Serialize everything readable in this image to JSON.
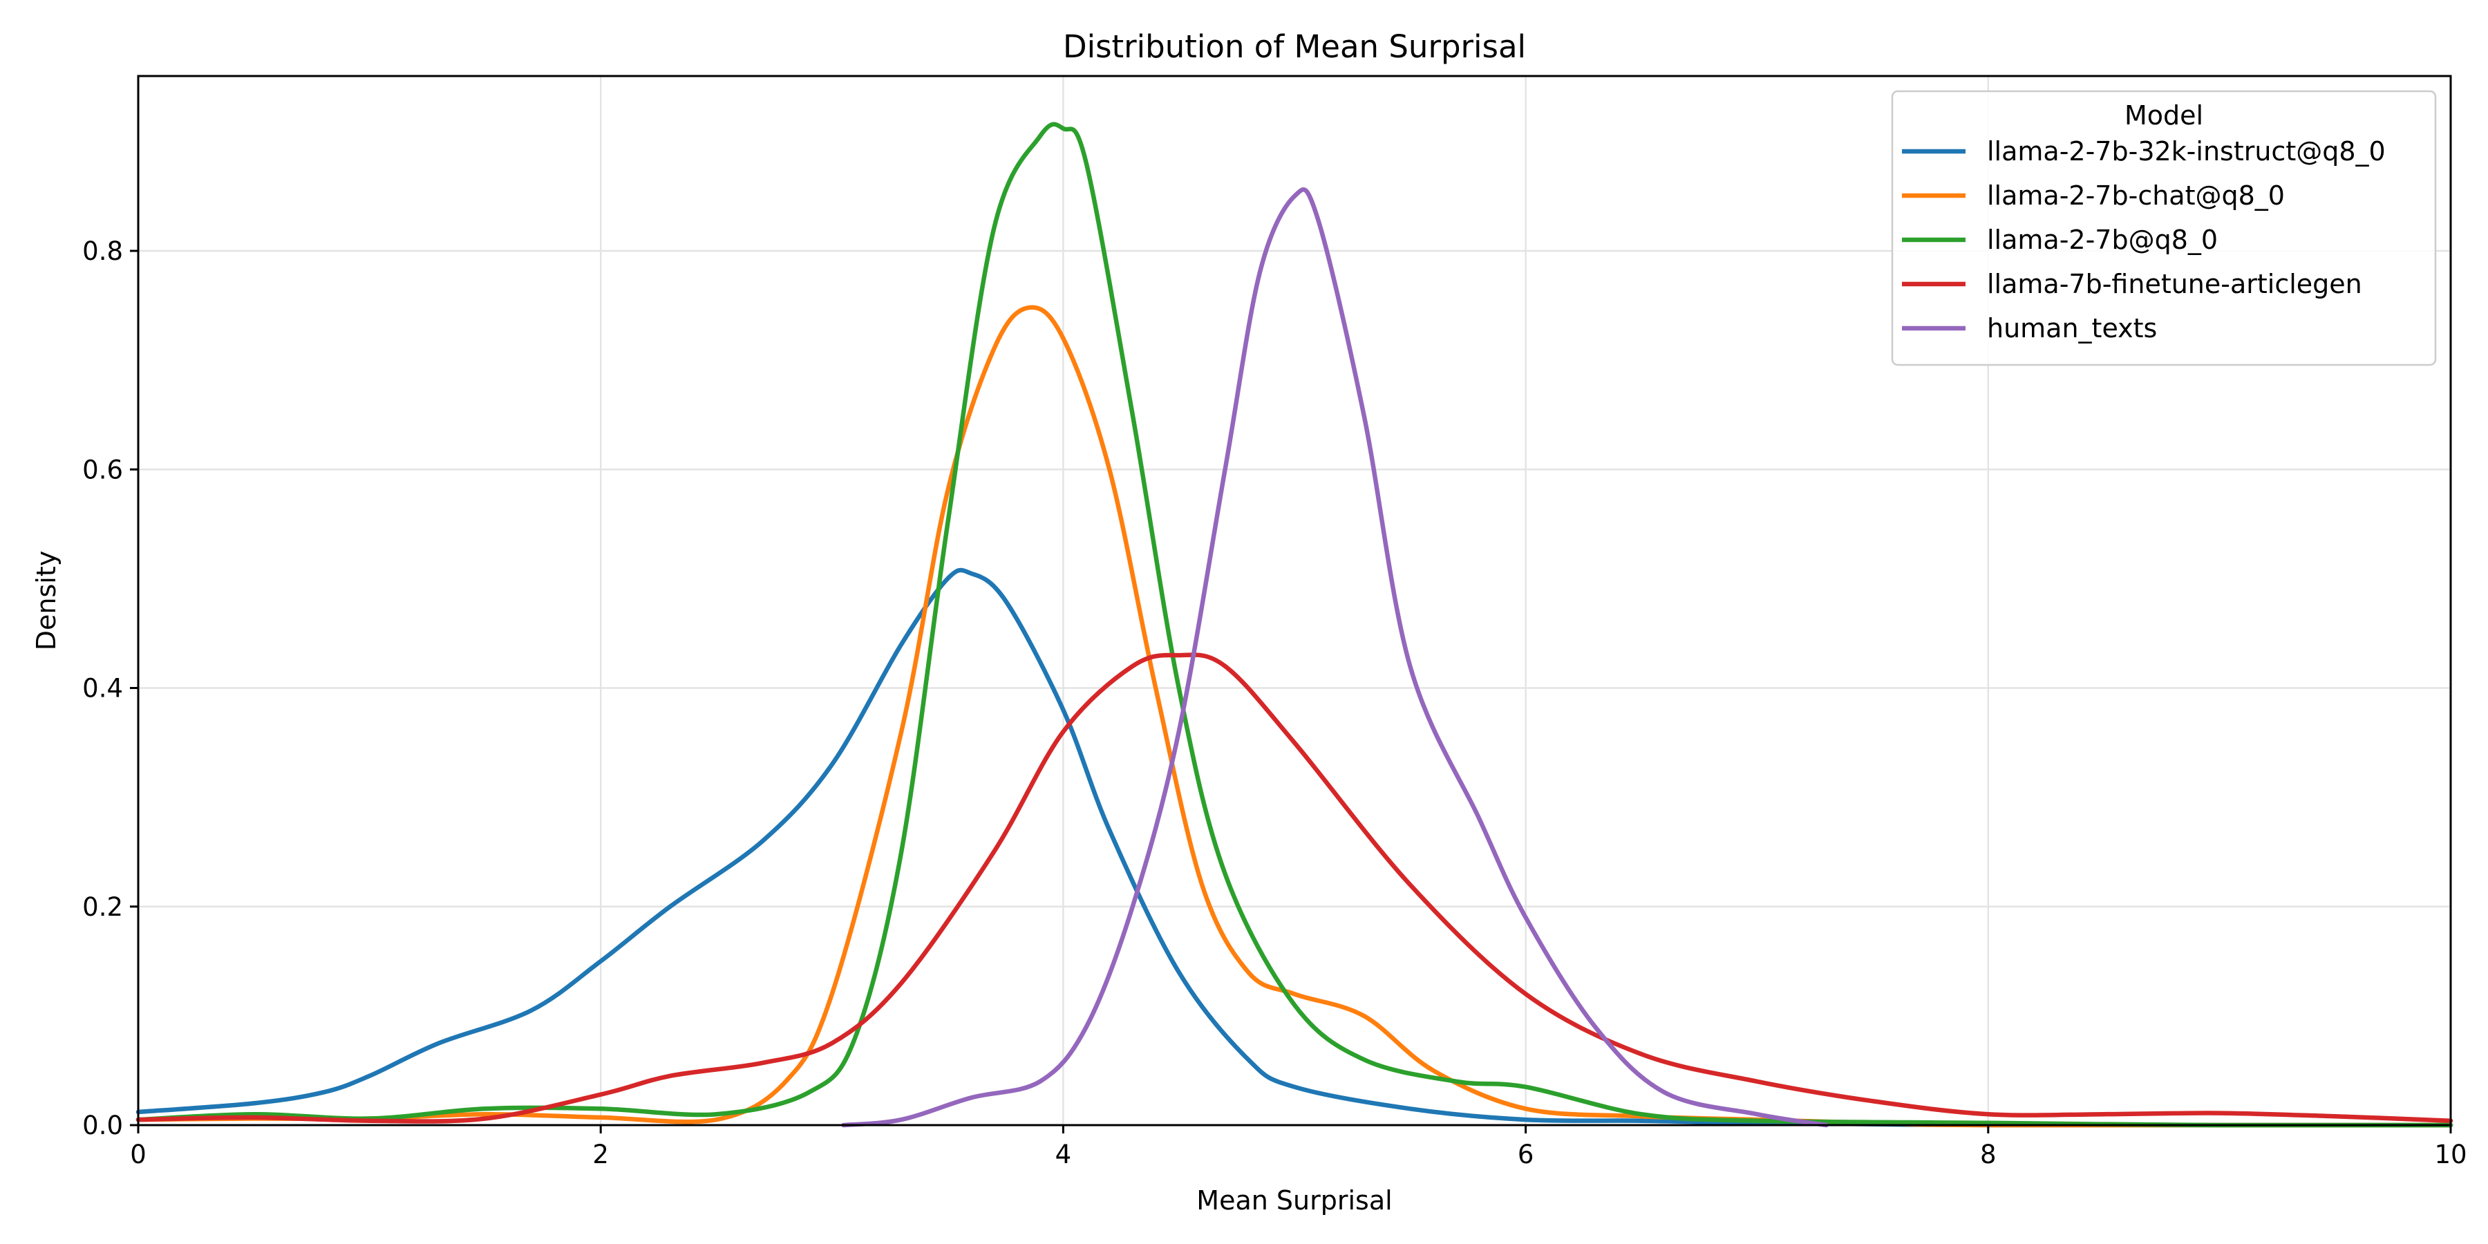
{
  "chart_data": {
    "type": "line",
    "title": "Distribution of Mean Surprisal",
    "xlabel": "Mean Surprisal",
    "ylabel": "Density",
    "xlim": [
      0,
      10
    ],
    "ylim": [
      0,
      0.96
    ],
    "xticks": [
      0,
      2,
      4,
      6,
      8,
      10
    ],
    "xtick_labels": [
      "0",
      "2",
      "4",
      "6",
      "8",
      "10"
    ],
    "yticks": [
      0.0,
      0.2,
      0.4,
      0.6,
      0.8
    ],
    "ytick_labels": [
      "0.0",
      "0.2",
      "0.4",
      "0.6",
      "0.8"
    ],
    "grid": true,
    "legend": {
      "title": "Model",
      "position": "top-right"
    },
    "series": [
      {
        "name": "llama-2-7b-32k-instruct@q8_0",
        "color": "#1f77b4",
        "points": [
          [
            0,
            0.012
          ],
          [
            0.5,
            0.02
          ],
          [
            0.8,
            0.03
          ],
          [
            1.0,
            0.045
          ],
          [
            1.3,
            0.075
          ],
          [
            1.7,
            0.105
          ],
          [
            2.0,
            0.15
          ],
          [
            2.3,
            0.2
          ],
          [
            2.7,
            0.26
          ],
          [
            3.0,
            0.33
          ],
          [
            3.3,
            0.44
          ],
          [
            3.5,
            0.5
          ],
          [
            3.6,
            0.505
          ],
          [
            3.75,
            0.48
          ],
          [
            4.0,
            0.38
          ],
          [
            4.2,
            0.27
          ],
          [
            4.5,
            0.14
          ],
          [
            4.8,
            0.06
          ],
          [
            5.0,
            0.035
          ],
          [
            5.5,
            0.015
          ],
          [
            6.0,
            0.005
          ],
          [
            6.5,
            0.004
          ],
          [
            7.0,
            0.002
          ],
          [
            8.0,
            0.0
          ],
          [
            9.0,
            0.0
          ],
          [
            10.0,
            0.0
          ]
        ]
      },
      {
        "name": "llama-2-7b-chat@q8_0",
        "color": "#ff7f0e",
        "points": [
          [
            0,
            0.005
          ],
          [
            0.5,
            0.006
          ],
          [
            1.0,
            0.006
          ],
          [
            1.5,
            0.01
          ],
          [
            2.0,
            0.007
          ],
          [
            2.5,
            0.005
          ],
          [
            2.8,
            0.04
          ],
          [
            3.0,
            0.12
          ],
          [
            3.3,
            0.36
          ],
          [
            3.5,
            0.58
          ],
          [
            3.7,
            0.71
          ],
          [
            3.85,
            0.748
          ],
          [
            4.0,
            0.72
          ],
          [
            4.2,
            0.6
          ],
          [
            4.4,
            0.4
          ],
          [
            4.6,
            0.22
          ],
          [
            4.8,
            0.14
          ],
          [
            5.0,
            0.12
          ],
          [
            5.3,
            0.1
          ],
          [
            5.6,
            0.05
          ],
          [
            6.0,
            0.015
          ],
          [
            6.5,
            0.008
          ],
          [
            7.0,
            0.005
          ],
          [
            7.5,
            0.002
          ],
          [
            8.0,
            0.0
          ],
          [
            10.0,
            0.0
          ]
        ]
      },
      {
        "name": "llama-2-7b@q8_0",
        "color": "#2ca02c",
        "points": [
          [
            0,
            0.005
          ],
          [
            0.5,
            0.01
          ],
          [
            1.0,
            0.006
          ],
          [
            1.5,
            0.015
          ],
          [
            2.0,
            0.015
          ],
          [
            2.5,
            0.01
          ],
          [
            2.9,
            0.03
          ],
          [
            3.1,
            0.08
          ],
          [
            3.3,
            0.25
          ],
          [
            3.5,
            0.55
          ],
          [
            3.7,
            0.82
          ],
          [
            3.9,
            0.905
          ],
          [
            4.0,
            0.912
          ],
          [
            4.1,
            0.88
          ],
          [
            4.3,
            0.65
          ],
          [
            4.5,
            0.4
          ],
          [
            4.7,
            0.23
          ],
          [
            5.0,
            0.11
          ],
          [
            5.3,
            0.06
          ],
          [
            5.7,
            0.04
          ],
          [
            6.0,
            0.035
          ],
          [
            6.5,
            0.01
          ],
          [
            7.0,
            0.004
          ],
          [
            8.0,
            0.002
          ],
          [
            9.0,
            0.0
          ],
          [
            10.0,
            0.0
          ]
        ]
      },
      {
        "name": "llama-7b-finetune-articlegen",
        "color": "#d62728",
        "points": [
          [
            0,
            0.005
          ],
          [
            0.5,
            0.007
          ],
          [
            1.0,
            0.004
          ],
          [
            1.5,
            0.006
          ],
          [
            2.0,
            0.028
          ],
          [
            2.3,
            0.045
          ],
          [
            2.7,
            0.057
          ],
          [
            3.0,
            0.075
          ],
          [
            3.3,
            0.13
          ],
          [
            3.7,
            0.25
          ],
          [
            4.0,
            0.36
          ],
          [
            4.3,
            0.42
          ],
          [
            4.5,
            0.43
          ],
          [
            4.7,
            0.42
          ],
          [
            5.0,
            0.35
          ],
          [
            5.5,
            0.22
          ],
          [
            6.0,
            0.12
          ],
          [
            6.5,
            0.065
          ],
          [
            7.0,
            0.04
          ],
          [
            7.5,
            0.022
          ],
          [
            8.0,
            0.01
          ],
          [
            8.5,
            0.01
          ],
          [
            9.0,
            0.011
          ],
          [
            9.5,
            0.008
          ],
          [
            10.0,
            0.004
          ]
        ]
      },
      {
        "name": "human_texts",
        "color": "#9467bd",
        "points": [
          [
            3.05,
            0.0
          ],
          [
            3.3,
            0.005
          ],
          [
            3.6,
            0.025
          ],
          [
            3.9,
            0.04
          ],
          [
            4.1,
            0.09
          ],
          [
            4.3,
            0.2
          ],
          [
            4.5,
            0.36
          ],
          [
            4.7,
            0.6
          ],
          [
            4.85,
            0.78
          ],
          [
            5.0,
            0.85
          ],
          [
            5.1,
            0.83
          ],
          [
            5.3,
            0.65
          ],
          [
            5.5,
            0.42
          ],
          [
            5.8,
            0.28
          ],
          [
            6.0,
            0.19
          ],
          [
            6.3,
            0.09
          ],
          [
            6.6,
            0.03
          ],
          [
            7.0,
            0.01
          ],
          [
            7.3,
            0.0
          ]
        ]
      }
    ]
  }
}
